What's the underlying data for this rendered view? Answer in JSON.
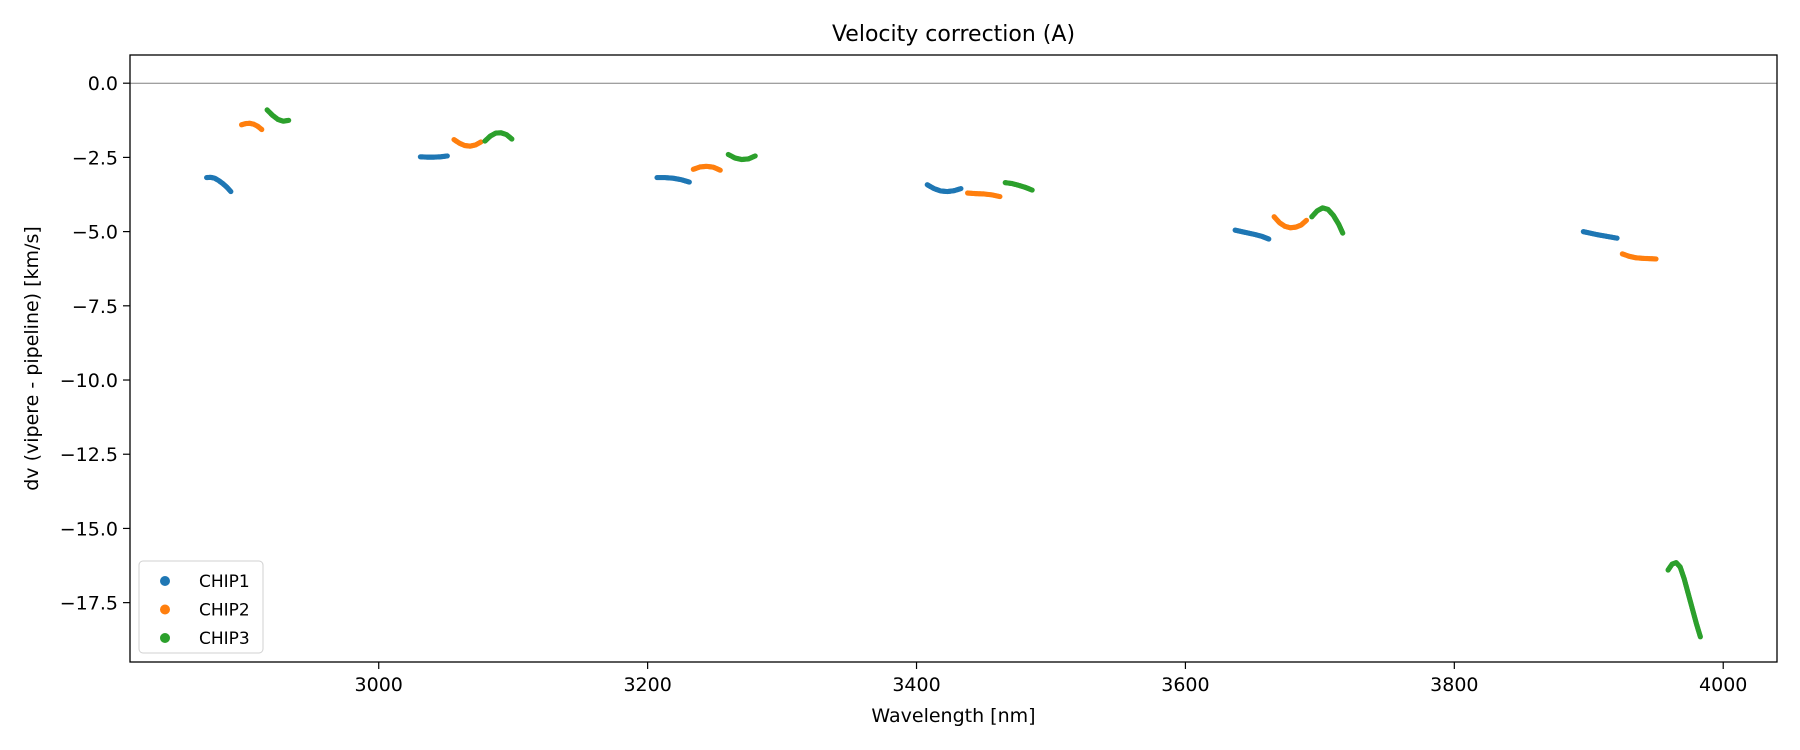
{
  "chart_data": {
    "type": "scatter",
    "title": "Velocity correction (A)",
    "xlabel": "Wavelength [nm]",
    "ylabel": "dv (vipere - pipeline) [km/s]",
    "xlim": [
      2815,
      4040
    ],
    "ylim": [
      -19.5,
      0.95
    ],
    "xticks": [
      3000,
      3200,
      3400,
      3600,
      3800,
      4000
    ],
    "yticks": [
      0.0,
      -2.5,
      -5.0,
      -7.5,
      -10.0,
      -12.5,
      -15.0,
      -17.5
    ],
    "xtick_labels": [
      "3000",
      "3200",
      "3400",
      "3600",
      "3800",
      "4000"
    ],
    "ytick_labels": [
      "0.0",
      "−2.5",
      "−5.0",
      "−7.5",
      "−10.0",
      "−12.5",
      "−15.0",
      "−17.5"
    ],
    "hline": 0.0,
    "legend_position": "lower-left",
    "series": [
      {
        "name": "CHIP1",
        "color": "#1f77b4",
        "segments": [
          {
            "x": [
              2872,
              2875,
              2878,
              2881,
              2884,
              2887,
              2890
            ],
            "y": [
              -3.18,
              -3.17,
              -3.2,
              -3.28,
              -3.38,
              -3.5,
              -3.65
            ]
          },
          {
            "x": [
              3031,
              3036,
              3041,
              3046,
              3051
            ],
            "y": [
              -2.48,
              -2.49,
              -2.49,
              -2.48,
              -2.45
            ]
          },
          {
            "x": [
              3207,
              3213,
              3219,
              3225,
              3231
            ],
            "y": [
              -3.18,
              -3.18,
              -3.2,
              -3.25,
              -3.33
            ]
          },
          {
            "x": [
              3408,
              3413,
              3418,
              3423,
              3428,
              3433
            ],
            "y": [
              -3.42,
              -3.55,
              -3.63,
              -3.65,
              -3.62,
              -3.55
            ]
          },
          {
            "x": [
              3637,
              3642,
              3647,
              3652,
              3657,
              3662
            ],
            "y": [
              -4.95,
              -5.0,
              -5.05,
              -5.1,
              -5.16,
              -5.25
            ]
          },
          {
            "x": [
              3896,
              3901,
              3906,
              3911,
              3916,
              3921
            ],
            "y": [
              -5.0,
              -5.05,
              -5.1,
              -5.14,
              -5.18,
              -5.22
            ]
          }
        ]
      },
      {
        "name": "CHIP2",
        "color": "#ff7f0e",
        "segments": [
          {
            "x": [
              2898,
              2901,
              2904,
              2907,
              2910,
              2913
            ],
            "y": [
              -1.4,
              -1.36,
              -1.35,
              -1.38,
              -1.45,
              -1.56
            ]
          },
          {
            "x": [
              3056,
              3060,
              3064,
              3068,
              3072,
              3076
            ],
            "y": [
              -1.9,
              -2.02,
              -2.1,
              -2.12,
              -2.08,
              -1.98
            ]
          },
          {
            "x": [
              3234,
              3239,
              3244,
              3249,
              3254
            ],
            "y": [
              -2.9,
              -2.82,
              -2.8,
              -2.83,
              -2.93
            ]
          },
          {
            "x": [
              3438,
              3444,
              3450,
              3456,
              3462
            ],
            "y": [
              -3.7,
              -3.72,
              -3.73,
              -3.76,
              -3.82
            ]
          },
          {
            "x": [
              3666,
              3670,
              3674,
              3678,
              3682,
              3686,
              3690
            ],
            "y": [
              -4.5,
              -4.7,
              -4.82,
              -4.87,
              -4.85,
              -4.78,
              -4.62
            ]
          },
          {
            "x": [
              3925,
              3930,
              3935,
              3940,
              3945,
              3950
            ],
            "y": [
              -5.75,
              -5.83,
              -5.88,
              -5.9,
              -5.91,
              -5.92
            ]
          }
        ]
      },
      {
        "name": "CHIP3",
        "color": "#2ca02c",
        "segments": [
          {
            "x": [
              2917,
              2921,
              2925,
              2929,
              2933
            ],
            "y": [
              -0.9,
              -1.08,
              -1.22,
              -1.28,
              -1.25
            ]
          },
          {
            "x": [
              3079,
              3083,
              3087,
              3091,
              3095,
              3099
            ],
            "y": [
              -1.95,
              -1.78,
              -1.68,
              -1.67,
              -1.73,
              -1.88
            ]
          },
          {
            "x": [
              3260,
              3265,
              3270,
              3275,
              3280
            ],
            "y": [
              -2.4,
              -2.52,
              -2.57,
              -2.55,
              -2.45
            ]
          },
          {
            "x": [
              3466,
              3471,
              3476,
              3481,
              3486
            ],
            "y": [
              -3.35,
              -3.38,
              -3.44,
              -3.51,
              -3.6
            ]
          },
          {
            "x": [
              3694,
              3698,
              3702,
              3706,
              3710,
              3714,
              3717
            ],
            "y": [
              -4.5,
              -4.3,
              -4.2,
              -4.25,
              -4.45,
              -4.75,
              -5.05
            ]
          },
          {
            "x": [
              3959,
              3962,
              3965,
              3968,
              3971,
              3974,
              3977,
              3980,
              3983
            ],
            "y": [
              -16.4,
              -16.2,
              -16.15,
              -16.3,
              -16.7,
              -17.2,
              -17.7,
              -18.2,
              -18.65
            ]
          }
        ]
      }
    ]
  }
}
